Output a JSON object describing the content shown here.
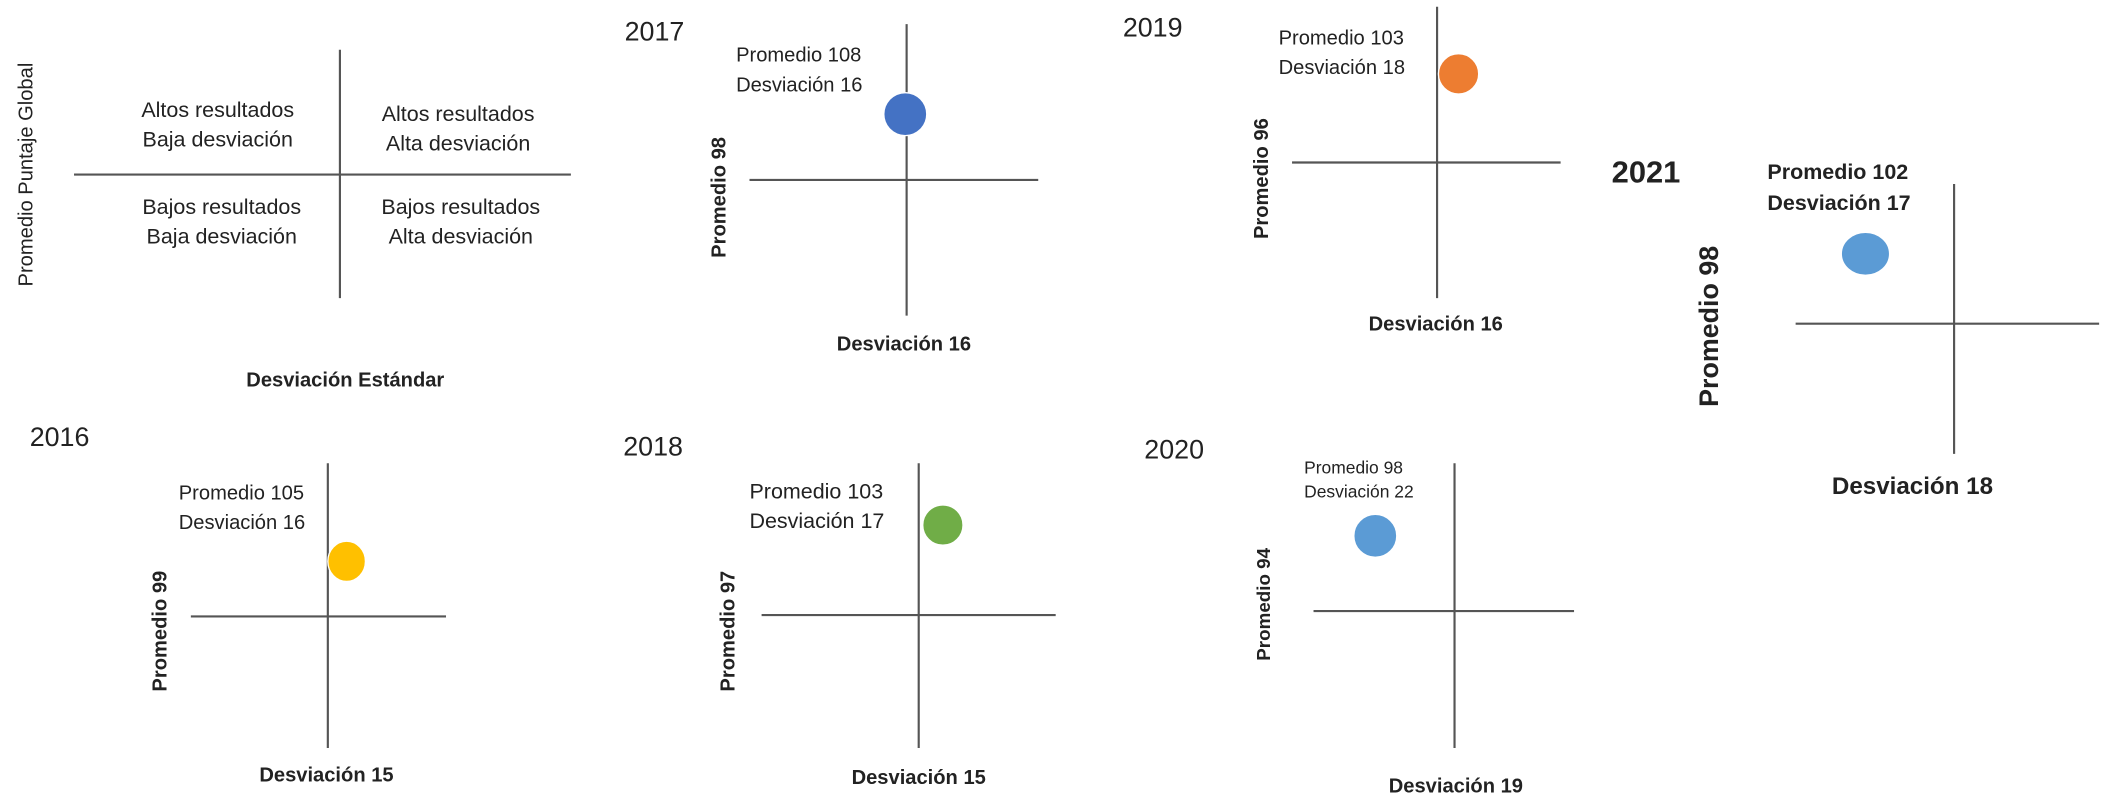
{
  "legend": {
    "y_label": "Promedio Puntaje Global",
    "x_label": "Desviación Estándar",
    "quadrants": [
      {
        "lines": [
          "Altos resultados",
          "Baja desviación"
        ]
      },
      {
        "lines": [
          "Altos resultados",
          "Alta desviación"
        ]
      },
      {
        "lines": [
          "Bajos resultados",
          "Baja desviación"
        ]
      },
      {
        "lines": [
          "Bajos resultados",
          "Alta desviación"
        ]
      }
    ]
  },
  "panels": [
    {
      "year": "2017",
      "point_label": [
        "Promedio 108",
        "Desviación 16"
      ],
      "y_label": "Promedio 98",
      "x_label": "Desviación 16",
      "color": "#4472c4"
    },
    {
      "year": "2019",
      "point_label": [
        "Promedio 103",
        "Desviación 18"
      ],
      "y_label": "Promedio 96",
      "x_label": "Desviación 16",
      "color": "#ed7d31"
    },
    {
      "year": "2021",
      "point_label": [
        "Promedio 102",
        "Desviación 17"
      ],
      "y_label": "Promedio 98",
      "x_label": "Desviación 18",
      "color": "#5b9bd5"
    },
    {
      "year": "2016",
      "point_label": [
        "Promedio 105",
        "Desviación 16"
      ],
      "y_label": "Promedio 99",
      "x_label": "Desviación 15",
      "color": "#ffc000"
    },
    {
      "year": "2018",
      "point_label": [
        "Promedio 103",
        "Desviación 17"
      ],
      "y_label": "Promedio 97",
      "x_label": "Desviación 15",
      "color": "#70ad47"
    },
    {
      "year": "2020",
      "point_label": [
        "Promedio 98",
        "Desviación 22"
      ],
      "y_label": "Promedio 94",
      "x_label": "Desviación 19",
      "color": "#5b9bd5"
    }
  ]
}
